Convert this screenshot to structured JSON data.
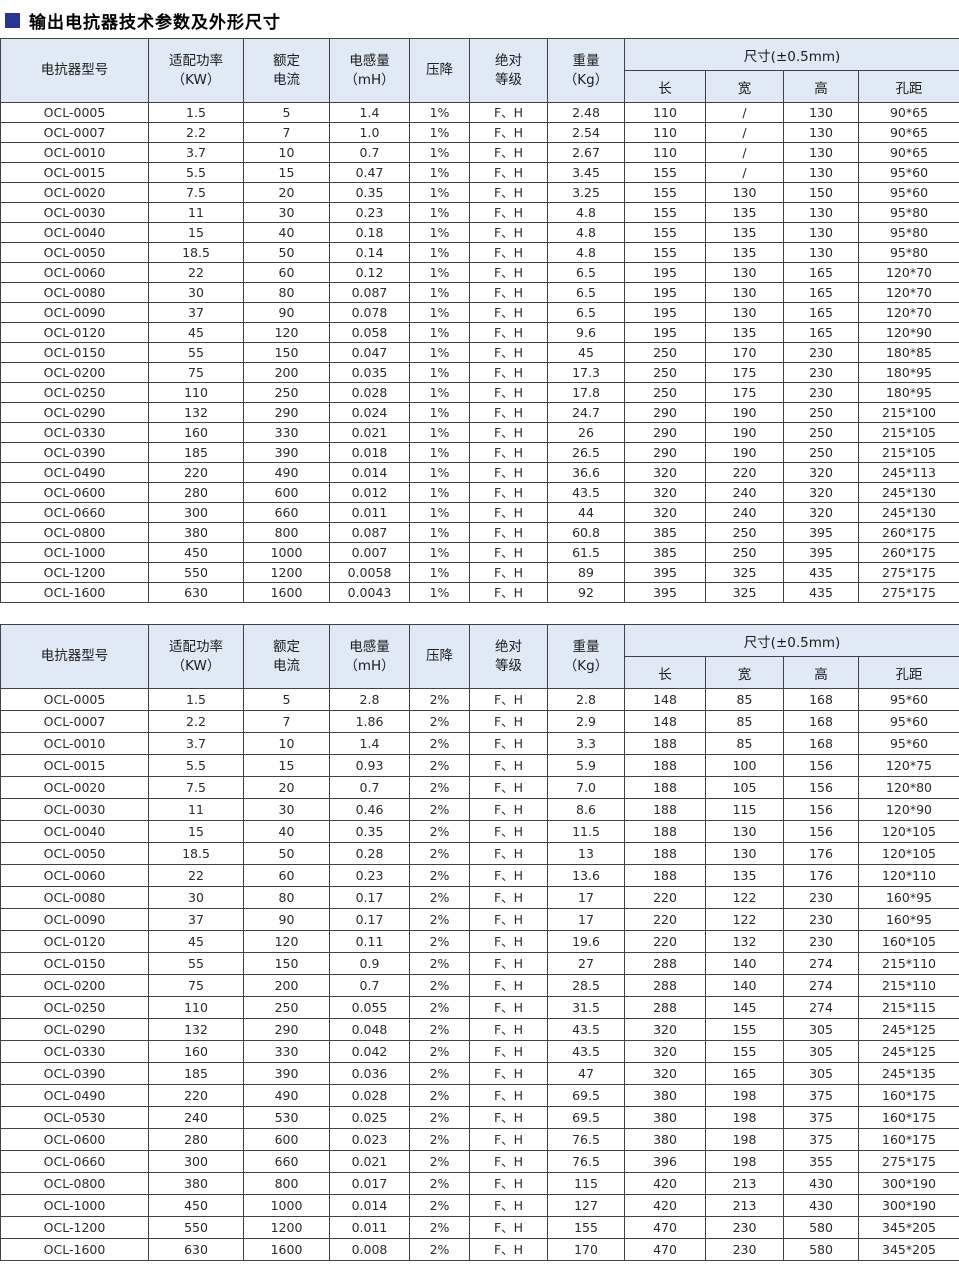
{
  "page": {
    "title": "输出电抗器技术参数及外形尺寸"
  },
  "colors": {
    "accent": "#2b3490",
    "header_bg": "#dfeaf5",
    "border": "#424242"
  },
  "columns": {
    "model": "电抗器型号",
    "power": "适配功率\n（KW）",
    "current": "额定\n电流",
    "inductance": "电感量\n（mH）",
    "drop": "压降",
    "insulation": "绝对\n等级",
    "weight": "重量\n（Kg）",
    "size_group": "尺寸(±0.5mm)",
    "length": "长",
    "width": "宽",
    "height": "高",
    "hole_distance": "孔距"
  },
  "table1": {
    "rows": [
      [
        "OCL-0005",
        "1.5",
        "5",
        "1.4",
        "1%",
        "F、H",
        "2.48",
        "110",
        "/",
        "130",
        "90*65"
      ],
      [
        "OCL-0007",
        "2.2",
        "7",
        "1.0",
        "1%",
        "F、H",
        "2.54",
        "110",
        "/",
        "130",
        "90*65"
      ],
      [
        "OCL-0010",
        "3.7",
        "10",
        "0.7",
        "1%",
        "F、H",
        "2.67",
        "110",
        "/",
        "130",
        "90*65"
      ],
      [
        "OCL-0015",
        "5.5",
        "15",
        "0.47",
        "1%",
        "F、H",
        "3.45",
        "155",
        "/",
        "130",
        "95*60"
      ],
      [
        "OCL-0020",
        "7.5",
        "20",
        "0.35",
        "1%",
        "F、H",
        "3.25",
        "155",
        "130",
        "150",
        "95*60"
      ],
      [
        "OCL-0030",
        "11",
        "30",
        "0.23",
        "1%",
        "F、H",
        "4.8",
        "155",
        "135",
        "130",
        "95*80"
      ],
      [
        "OCL-0040",
        "15",
        "40",
        "0.18",
        "1%",
        "F、H",
        "4.8",
        "155",
        "135",
        "130",
        "95*80"
      ],
      [
        "OCL-0050",
        "18.5",
        "50",
        "0.14",
        "1%",
        "F、H",
        "4.8",
        "155",
        "135",
        "130",
        "95*80"
      ],
      [
        "OCL-0060",
        "22",
        "60",
        "0.12",
        "1%",
        "F、H",
        "6.5",
        "195",
        "130",
        "165",
        "120*70"
      ],
      [
        "OCL-0080",
        "30",
        "80",
        "0.087",
        "1%",
        "F、H",
        "6.5",
        "195",
        "130",
        "165",
        "120*70"
      ],
      [
        "OCL-0090",
        "37",
        "90",
        "0.078",
        "1%",
        "F、H",
        "6.5",
        "195",
        "130",
        "165",
        "120*70"
      ],
      [
        "OCL-0120",
        "45",
        "120",
        "0.058",
        "1%",
        "F、H",
        "9.6",
        "195",
        "135",
        "165",
        "120*90"
      ],
      [
        "OCL-0150",
        "55",
        "150",
        "0.047",
        "1%",
        "F、H",
        "45",
        "250",
        "170",
        "230",
        "180*85"
      ],
      [
        "OCL-0200",
        "75",
        "200",
        "0.035",
        "1%",
        "F、H",
        "17.3",
        "250",
        "175",
        "230",
        "180*95"
      ],
      [
        "OCL-0250",
        "110",
        "250",
        "0.028",
        "1%",
        "F、H",
        "17.8",
        "250",
        "175",
        "230",
        "180*95"
      ],
      [
        "OCL-0290",
        "132",
        "290",
        "0.024",
        "1%",
        "F、H",
        "24.7",
        "290",
        "190",
        "250",
        "215*100"
      ],
      [
        "OCL-0330",
        "160",
        "330",
        "0.021",
        "1%",
        "F、H",
        "26",
        "290",
        "190",
        "250",
        "215*105"
      ],
      [
        "OCL-0390",
        "185",
        "390",
        "0.018",
        "1%",
        "F、H",
        "26.5",
        "290",
        "190",
        "250",
        "215*105"
      ],
      [
        "OCL-0490",
        "220",
        "490",
        "0.014",
        "1%",
        "F、H",
        "36.6",
        "320",
        "220",
        "320",
        "245*113"
      ],
      [
        "OCL-0600",
        "280",
        "600",
        "0.012",
        "1%",
        "F、H",
        "43.5",
        "320",
        "240",
        "320",
        "245*130"
      ],
      [
        "OCL-0660",
        "300",
        "660",
        "0.011",
        "1%",
        "F、H",
        "44",
        "320",
        "240",
        "320",
        "245*130"
      ],
      [
        "OCL-0800",
        "380",
        "800",
        "0.087",
        "1%",
        "F、H",
        "60.8",
        "385",
        "250",
        "395",
        "260*175"
      ],
      [
        "OCL-1000",
        "450",
        "1000",
        "0.007",
        "1%",
        "F、H",
        "61.5",
        "385",
        "250",
        "395",
        "260*175"
      ],
      [
        "OCL-1200",
        "550",
        "1200",
        "0.0058",
        "1%",
        "F、H",
        "89",
        "395",
        "325",
        "435",
        "275*175"
      ],
      [
        "OCL-1600",
        "630",
        "1600",
        "0.0043",
        "1%",
        "F、H",
        "92",
        "395",
        "325",
        "435",
        "275*175"
      ]
    ]
  },
  "table2": {
    "rows": [
      [
        "OCL-0005",
        "1.5",
        "5",
        "2.8",
        "2%",
        "F、H",
        "2.8",
        "148",
        "85",
        "168",
        "95*60"
      ],
      [
        "OCL-0007",
        "2.2",
        "7",
        "1.86",
        "2%",
        "F、H",
        "2.9",
        "148",
        "85",
        "168",
        "95*60"
      ],
      [
        "OCL-0010",
        "3.7",
        "10",
        "1.4",
        "2%",
        "F、H",
        "3.3",
        "188",
        "85",
        "168",
        "95*60"
      ],
      [
        "OCL-0015",
        "5.5",
        "15",
        "0.93",
        "2%",
        "F、H",
        "5.9",
        "188",
        "100",
        "156",
        "120*75"
      ],
      [
        "OCL-0020",
        "7.5",
        "20",
        "0.7",
        "2%",
        "F、H",
        "7.0",
        "188",
        "105",
        "156",
        "120*80"
      ],
      [
        "OCL-0030",
        "11",
        "30",
        "0.46",
        "2%",
        "F、H",
        "8.6",
        "188",
        "115",
        "156",
        "120*90"
      ],
      [
        "OCL-0040",
        "15",
        "40",
        "0.35",
        "2%",
        "F、H",
        "11.5",
        "188",
        "130",
        "156",
        "120*105"
      ],
      [
        "OCL-0050",
        "18.5",
        "50",
        "0.28",
        "2%",
        "F、H",
        "13",
        "188",
        "130",
        "176",
        "120*105"
      ],
      [
        "OCL-0060",
        "22",
        "60",
        "0.23",
        "2%",
        "F、H",
        "13.6",
        "188",
        "135",
        "176",
        "120*110"
      ],
      [
        "OCL-0080",
        "30",
        "80",
        "0.17",
        "2%",
        "F、H",
        "17",
        "220",
        "122",
        "230",
        "160*95"
      ],
      [
        "OCL-0090",
        "37",
        "90",
        "0.17",
        "2%",
        "F、H",
        "17",
        "220",
        "122",
        "230",
        "160*95"
      ],
      [
        "OCL-0120",
        "45",
        "120",
        "0.11",
        "2%",
        "F、H",
        "19.6",
        "220",
        "132",
        "230",
        "160*105"
      ],
      [
        "OCL-0150",
        "55",
        "150",
        "0.9",
        "2%",
        "F、H",
        "27",
        "288",
        "140",
        "274",
        "215*110"
      ],
      [
        "OCL-0200",
        "75",
        "200",
        "0.7",
        "2%",
        "F、H",
        "28.5",
        "288",
        "140",
        "274",
        "215*110"
      ],
      [
        "OCL-0250",
        "110",
        "250",
        "0.055",
        "2%",
        "F、H",
        "31.5",
        "288",
        "145",
        "274",
        "215*115"
      ],
      [
        "OCL-0290",
        "132",
        "290",
        "0.048",
        "2%",
        "F、H",
        "43.5",
        "320",
        "155",
        "305",
        "245*125"
      ],
      [
        "OCL-0330",
        "160",
        "330",
        "0.042",
        "2%",
        "F、H",
        "43.5",
        "320",
        "155",
        "305",
        "245*125"
      ],
      [
        "OCL-0390",
        "185",
        "390",
        "0.036",
        "2%",
        "F、H",
        "47",
        "320",
        "165",
        "305",
        "245*135"
      ],
      [
        "OCL-0490",
        "220",
        "490",
        "0.028",
        "2%",
        "F、H",
        "69.5",
        "380",
        "198",
        "375",
        "160*175"
      ],
      [
        "OCL-0530",
        "240",
        "530",
        "0.025",
        "2%",
        "F、H",
        "69.5",
        "380",
        "198",
        "375",
        "160*175"
      ],
      [
        "OCL-0600",
        "280",
        "600",
        "0.023",
        "2%",
        "F、H",
        "76.5",
        "380",
        "198",
        "375",
        "160*175"
      ],
      [
        "OCL-0660",
        "300",
        "660",
        "0.021",
        "2%",
        "F、H",
        "76.5",
        "396",
        "198",
        "355",
        "275*175"
      ],
      [
        "OCL-0800",
        "380",
        "800",
        "0.017",
        "2%",
        "F、H",
        "115",
        "420",
        "213",
        "430",
        "300*190"
      ],
      [
        "OCL-1000",
        "450",
        "1000",
        "0.014",
        "2%",
        "F、H",
        "127",
        "420",
        "213",
        "430",
        "300*190"
      ],
      [
        "OCL-1200",
        "550",
        "1200",
        "0.011",
        "2%",
        "F、H",
        "155",
        "470",
        "230",
        "580",
        "345*205"
      ],
      [
        "OCL-1600",
        "630",
        "1600",
        "0.008",
        "2%",
        "F、H",
        "170",
        "470",
        "230",
        "580",
        "345*205"
      ]
    ]
  }
}
